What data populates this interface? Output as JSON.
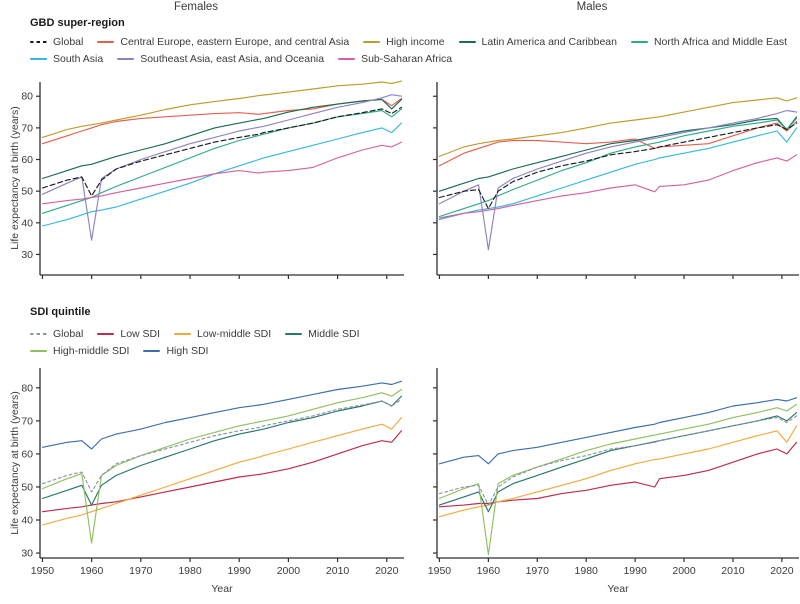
{
  "figure": {
    "col_titles": [
      "Females",
      "Males"
    ],
    "xlabel": "Year",
    "ylabel": "Life expectancy at birth (years)"
  },
  "colors": {
    "axis": "#2f2f2f",
    "gbd_global": "#1a1a1a",
    "central_europe": "#e4604e",
    "high_income": "#c09a2c",
    "latin_america": "#1b6b52",
    "north_africa_middle_east": "#2bab8b",
    "south_asia": "#35b8e0",
    "southeast_asia": "#8b84c4",
    "sub_saharan_africa": "#d4619e",
    "sdi_global": "#8c94a8",
    "low_sdi": "#be2b49",
    "low_middle_sdi": "#f2a93b",
    "middle_sdi": "#27776b",
    "high_middle_sdi": "#8fc05e",
    "high_sdi": "#3a6fae"
  },
  "sections": [
    {
      "title": "GBD super-region",
      "legend_rows": [
        [
          {
            "label": "Global",
            "color": "#1a1a1a",
            "dash": true
          },
          {
            "label": "Central Europe, eastern Europe, and central Asia",
            "color": "#e4604e"
          },
          {
            "label": "High income",
            "color": "#c09a2c"
          },
          {
            "label": "Latin America and Caribbean",
            "color": "#1b6b52"
          },
          {
            "label": "North Africa and Middle East",
            "color": "#2bab8b"
          }
        ],
        [
          {
            "label": "South Asia",
            "color": "#35b8e0"
          },
          {
            "label": "Southeast Asia, east Asia, and Oceania",
            "color": "#8b84c4"
          },
          {
            "label": "Sub-Saharan Africa",
            "color": "#d4619e"
          }
        ]
      ]
    },
    {
      "title": "SDI quintile",
      "legend_rows": [
        [
          {
            "label": "Global",
            "color": "#8c94a8",
            "dash": true
          },
          {
            "label": "Low SDI",
            "color": "#be2b49"
          },
          {
            "label": "Low-middle SDI",
            "color": "#f2a93b"
          },
          {
            "label": "Middle SDI",
            "color": "#27776b"
          }
        ],
        [
          {
            "label": "High-middle SDI",
            "color": "#8fc05e"
          },
          {
            "label": "High SDI",
            "color": "#3a6fae"
          }
        ]
      ]
    }
  ],
  "chart_data": [
    {
      "id": "females-gbd",
      "type": "line",
      "title": "Females — GBD super-region",
      "ylabel": "Life expectancy at birth (years)",
      "xlim": [
        1949.5,
        2023.5
      ],
      "ylim": [
        23.5,
        84.5
      ],
      "y_ticks": [
        30,
        40,
        50,
        60,
        70,
        80
      ],
      "x_ticks": [
        1950,
        1960,
        1970,
        1980,
        1990,
        2000,
        2010,
        2020
      ],
      "show_y_tick_labels": true,
      "show_x_tick_labels": false,
      "x": [
        1950,
        1955,
        1958,
        1960,
        1962,
        1965,
        1970,
        1975,
        1980,
        1985,
        1990,
        1994,
        1995,
        2000,
        2005,
        2010,
        2015,
        2019,
        2021,
        2023
      ],
      "series": [
        {
          "name": "Global",
          "color": "#1a1a1a",
          "dash": "5,3",
          "values": [
            51,
            53.5,
            54.5,
            48.5,
            53.5,
            57,
            59.5,
            61.5,
            63.5,
            65.5,
            67,
            68,
            68.5,
            70,
            71.5,
            73.5,
            74.8,
            76,
            74.5,
            76.5
          ]
        },
        {
          "name": "Central Europe, eastern Europe, and central Asia",
          "color": "#e4604e",
          "values": [
            65,
            67.5,
            69,
            70,
            71,
            72,
            73,
            73.5,
            74,
            74.5,
            74.8,
            74.3,
            74.5,
            75.5,
            76,
            77.5,
            78.5,
            79,
            77,
            79.3
          ]
        },
        {
          "name": "High income",
          "color": "#c09a2c",
          "values": [
            67,
            69.5,
            70.5,
            71,
            71.5,
            72.5,
            74,
            75.8,
            77.3,
            78.3,
            79.3,
            80.2,
            80.4,
            81.3,
            82.3,
            83.3,
            83.8,
            84.5,
            84,
            84.8
          ]
        },
        {
          "name": "Latin America and Caribbean",
          "color": "#1b6b52",
          "values": [
            54,
            56.5,
            58,
            58.5,
            59.5,
            61,
            63,
            65,
            67.5,
            70,
            71.5,
            72.7,
            73,
            75,
            76.5,
            77.5,
            78.5,
            79,
            76,
            79
          ]
        },
        {
          "name": "North Africa and Middle East",
          "color": "#2bab8b",
          "values": [
            43,
            45.5,
            47,
            48,
            49.5,
            51.5,
            54.5,
            57.5,
            60.5,
            63.5,
            66,
            67.6,
            68,
            70,
            71.5,
            73.5,
            74.5,
            75.5,
            73.5,
            76
          ]
        },
        {
          "name": "South Asia",
          "color": "#35b8e0",
          "values": [
            39,
            41,
            42.5,
            43.5,
            44,
            45,
            47.5,
            50,
            52.5,
            55.5,
            58,
            60,
            60.5,
            62.5,
            64.5,
            66.5,
            68.5,
            70,
            68.5,
            71.5
          ]
        },
        {
          "name": "Southeast Asia, east Asia, and Oceania",
          "color": "#8b84c4",
          "values": [
            49,
            52.5,
            54.5,
            34.5,
            54,
            57,
            60,
            62.5,
            65,
            67,
            69,
            70.2,
            70.5,
            72.5,
            74.5,
            76.5,
            78,
            79.5,
            80.5,
            80
          ]
        },
        {
          "name": "Sub-Saharan Africa",
          "color": "#d4619e",
          "values": [
            46,
            47,
            47.5,
            48,
            48.5,
            49.5,
            51,
            52.5,
            54,
            55.5,
            56.5,
            55.7,
            56,
            56.5,
            57.5,
            60.5,
            63,
            64.5,
            64,
            65.5
          ]
        }
      ]
    },
    {
      "id": "males-gbd",
      "type": "line",
      "title": "Males — GBD super-region",
      "xlim": [
        1949.5,
        2023.5
      ],
      "ylim": [
        23.5,
        84.5
      ],
      "y_ticks": [
        30,
        40,
        50,
        60,
        70,
        80
      ],
      "x_ticks": [
        1950,
        1960,
        1970,
        1980,
        1990,
        2000,
        2010,
        2020
      ],
      "show_y_tick_labels": false,
      "show_x_tick_labels": false,
      "x": [
        1950,
        1955,
        1958,
        1960,
        1962,
        1965,
        1970,
        1975,
        1980,
        1985,
        1990,
        1994,
        1995,
        2000,
        2005,
        2010,
        2015,
        2019,
        2021,
        2023
      ],
      "series": [
        {
          "name": "Global",
          "color": "#1a1a1a",
          "dash": "5,3",
          "values": [
            48,
            50,
            50.5,
            44.5,
            50,
            53,
            56,
            58,
            59.5,
            61.5,
            62.5,
            63.5,
            64,
            65.5,
            67,
            68.5,
            70,
            71,
            69.5,
            71.5
          ]
        },
        {
          "name": "Central Europe, eastern Europe, and central Asia",
          "color": "#e4604e",
          "values": [
            58,
            62,
            63.5,
            64.5,
            65.5,
            66,
            66,
            65.5,
            65,
            65.5,
            66.5,
            63.5,
            64,
            64.5,
            65,
            67.5,
            70,
            71.5,
            69,
            72
          ]
        },
        {
          "name": "High income",
          "color": "#c09a2c",
          "values": [
            61,
            64,
            65,
            65.5,
            66,
            66.5,
            67.5,
            68.5,
            70,
            71.5,
            72.5,
            73.3,
            73.5,
            75,
            76.5,
            78,
            78.8,
            79.5,
            78.5,
            79.5
          ]
        },
        {
          "name": "Latin America and Caribbean",
          "color": "#1b6b52",
          "values": [
            50,
            52.5,
            54,
            54.5,
            55.5,
            57,
            59,
            61,
            63,
            65,
            66,
            67.2,
            67.5,
            69,
            70,
            71,
            72.5,
            73,
            69.5,
            73.5
          ]
        },
        {
          "name": "North Africa and Middle East",
          "color": "#2bab8b",
          "values": [
            42,
            44.5,
            46,
            47,
            48.5,
            50.5,
            53.5,
            56.5,
            59,
            62,
            64,
            65.2,
            65.5,
            67.5,
            69,
            70.5,
            71.5,
            72.5,
            69.5,
            73
          ]
        },
        {
          "name": "South Asia",
          "color": "#35b8e0",
          "values": [
            41,
            43,
            44,
            44.5,
            45,
            46,
            48.5,
            51,
            53.5,
            56,
            58.5,
            60,
            60.5,
            62,
            63.5,
            65.5,
            67.5,
            69,
            65.5,
            70
          ]
        },
        {
          "name": "Southeast Asia, east Asia, and Oceania",
          "color": "#8b84c4",
          "values": [
            46,
            50,
            52,
            31.5,
            51,
            54,
            57,
            59.5,
            62,
            64,
            65.5,
            66.7,
            67,
            68.5,
            70,
            71.5,
            73,
            74.5,
            75.5,
            75
          ]
        },
        {
          "name": "Sub-Saharan Africa",
          "color": "#d4619e",
          "values": [
            41.5,
            43,
            43.5,
            44,
            44.5,
            45.5,
            47,
            48.5,
            49.5,
            51,
            52,
            49.8,
            51.5,
            52,
            53.5,
            56.5,
            59,
            60.5,
            59.5,
            61.5
          ]
        }
      ]
    },
    {
      "id": "females-sdi",
      "type": "line",
      "title": "Females — SDI quintile",
      "ylabel": "Life expectancy at birth (years)",
      "xlabel": "Year",
      "xlim": [
        1949.5,
        2023.5
      ],
      "ylim": [
        28.5,
        86
      ],
      "y_ticks": [
        30,
        40,
        50,
        60,
        70,
        80
      ],
      "x_ticks": [
        1950,
        1960,
        1970,
        1980,
        1990,
        2000,
        2010,
        2020
      ],
      "show_y_tick_labels": true,
      "show_x_tick_labels": true,
      "x": [
        1950,
        1955,
        1958,
        1960,
        1962,
        1965,
        1970,
        1975,
        1980,
        1985,
        1990,
        1994,
        1995,
        2000,
        2005,
        2010,
        2015,
        2019,
        2021,
        2023
      ],
      "series": [
        {
          "name": "Global",
          "color": "#8c94a8",
          "dash": "2.8,2.8",
          "values": [
            51,
            53.5,
            54.5,
            48.5,
            53.5,
            57,
            59.5,
            61.5,
            63.5,
            65.5,
            67,
            68,
            68.5,
            70,
            71.5,
            73.5,
            74.8,
            76,
            74.5,
            76.5
          ]
        },
        {
          "name": "Low SDI",
          "color": "#be2b49",
          "values": [
            42.5,
            43.5,
            44,
            44.5,
            45,
            45.5,
            47,
            48.5,
            50,
            51.5,
            53,
            53.8,
            54,
            55.5,
            57.5,
            60,
            62.5,
            64,
            63.5,
            67
          ]
        },
        {
          "name": "Low-middle SDI",
          "color": "#f2a93b",
          "values": [
            38.5,
            40.5,
            41.5,
            42.5,
            43.5,
            45,
            47.5,
            50,
            52.5,
            55,
            57.5,
            59,
            59.5,
            61.5,
            63.5,
            65.5,
            67.5,
            69,
            67.5,
            71
          ]
        },
        {
          "name": "Middle SDI",
          "color": "#27776b",
          "values": [
            46.5,
            49,
            50.5,
            44.5,
            50.5,
            53.5,
            56.5,
            59,
            61.5,
            64,
            66,
            67.2,
            67.5,
            69.5,
            71,
            73,
            74.5,
            76,
            74.5,
            77.5
          ]
        },
        {
          "name": "High-middle SDI",
          "color": "#8fc05e",
          "values": [
            49.5,
            52.5,
            54,
            33,
            53.5,
            56.5,
            59.5,
            62,
            64.5,
            66.5,
            68.5,
            69.7,
            70,
            71.5,
            73.5,
            75.5,
            77,
            78.5,
            77.5,
            79.5
          ]
        },
        {
          "name": "High SDI",
          "color": "#3a6fae",
          "values": [
            62,
            63.5,
            64,
            61.5,
            64.5,
            66,
            67.5,
            69.5,
            71,
            72.5,
            74,
            74.8,
            75,
            76.5,
            78,
            79.5,
            80.5,
            81.5,
            81,
            82
          ]
        }
      ]
    },
    {
      "id": "males-sdi",
      "type": "line",
      "title": "Males — SDI quintile",
      "xlabel": "Year",
      "xlim": [
        1949.5,
        2023.5
      ],
      "ylim": [
        28.5,
        86
      ],
      "y_ticks": [
        30,
        40,
        50,
        60,
        70,
        80
      ],
      "x_ticks": [
        1950,
        1960,
        1970,
        1980,
        1990,
        2000,
        2010,
        2020
      ],
      "show_y_tick_labels": false,
      "show_x_tick_labels": true,
      "x": [
        1950,
        1955,
        1958,
        1960,
        1962,
        1965,
        1970,
        1975,
        1980,
        1985,
        1990,
        1994,
        1995,
        2000,
        2005,
        2010,
        2015,
        2019,
        2021,
        2023
      ],
      "series": [
        {
          "name": "Global",
          "color": "#8c94a8",
          "dash": "2.8,2.8",
          "values": [
            48,
            50,
            50.5,
            44.5,
            50,
            53,
            56,
            58,
            59.5,
            61.5,
            62.5,
            63.5,
            64,
            65.5,
            67,
            68.5,
            70,
            71,
            69.5,
            71.5
          ]
        },
        {
          "name": "Low SDI",
          "color": "#be2b49",
          "values": [
            44,
            44.5,
            45,
            45,
            45.5,
            46,
            46.5,
            48,
            49,
            50.5,
            51.5,
            50,
            52.5,
            53.5,
            55,
            57.5,
            60,
            61.5,
            60,
            63.5
          ]
        },
        {
          "name": "Low-middle SDI",
          "color": "#f2a93b",
          "values": [
            41,
            43,
            44,
            44.5,
            45.5,
            46.5,
            48.5,
            50.5,
            52.5,
            55,
            57,
            58.3,
            58.5,
            60,
            61.5,
            63.5,
            65.5,
            67,
            63.5,
            68.5
          ]
        },
        {
          "name": "Middle SDI",
          "color": "#27776b",
          "values": [
            44.5,
            47,
            48.5,
            42.5,
            48.5,
            51,
            53.5,
            56,
            58.5,
            61,
            62.5,
            63.7,
            64,
            65.5,
            67,
            68.5,
            70,
            71.5,
            70,
            72.5
          ]
        },
        {
          "name": "High-middle SDI",
          "color": "#8fc05e",
          "values": [
            46.5,
            49.5,
            51,
            29.5,
            51,
            53.5,
            56,
            58.5,
            61,
            63,
            64.5,
            65.7,
            66,
            67.5,
            69,
            71,
            72.5,
            74,
            73,
            75
          ]
        },
        {
          "name": "High SDI",
          "color": "#3a6fae",
          "values": [
            57,
            59,
            59.5,
            57,
            60,
            61,
            62,
            63.5,
            65,
            66.5,
            68,
            69,
            69.5,
            71,
            72.5,
            74.5,
            75.5,
            76.5,
            76,
            77
          ]
        }
      ]
    }
  ]
}
